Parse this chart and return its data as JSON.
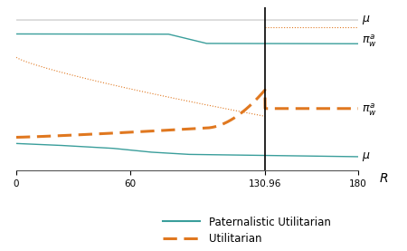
{
  "teal_color": "#3a9e9b",
  "orange_color": "#e07820",
  "gray_top_color": "#b0b0b0",
  "vline_x": 130.96,
  "x_min": 0,
  "x_max": 180,
  "xticks": [
    0,
    60,
    130.96,
    180
  ],
  "xtick_labels": [
    "0",
    "60",
    "130.96",
    "180"
  ],
  "legend_solid_label": "Paternalistic Utilitarian",
  "legend_dashed_label": "Utilitarian",
  "figsize": [
    4.5,
    2.77
  ],
  "dpi": 100
}
